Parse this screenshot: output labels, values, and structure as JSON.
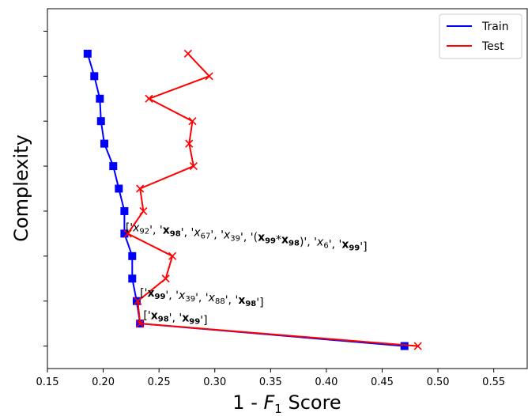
{
  "chart_data": {
    "type": "line",
    "title": "",
    "xlabel": "1 - F1 Score",
    "xlabel_parts": [
      "1 - ",
      "F",
      "1",
      " Score"
    ],
    "ylabel": "Complexity",
    "xlim": [
      0.15,
      0.58
    ],
    "ylim": [
      0,
      16
    ],
    "xticks": [
      0.15,
      0.2,
      0.25,
      0.3,
      0.35,
      0.4,
      0.45,
      0.5,
      0.55
    ],
    "xtick_labels": [
      "0.15",
      "0.20",
      "0.25",
      "0.30",
      "0.35",
      "0.40",
      "0.45",
      "0.50",
      "0.55"
    ],
    "yticks": [
      1,
      3,
      5,
      7,
      9,
      11,
      13,
      15
    ],
    "grid": false,
    "legend_position": "top-right",
    "series": [
      {
        "name": "Train",
        "color": "#0000ff",
        "marker": "square",
        "x": [
          0.47,
          0.233,
          0.23,
          0.226,
          0.226,
          0.219,
          0.219,
          0.214,
          0.209,
          0.201,
          0.198,
          0.197,
          0.192,
          0.186
        ],
        "y": [
          1,
          2,
          3,
          4,
          5,
          6,
          7,
          8,
          9,
          10,
          11,
          12,
          13,
          14
        ]
      },
      {
        "name": "Test",
        "color": "#ff0000",
        "marker": "x",
        "x": [
          0.482,
          0.233,
          0.231,
          0.256,
          0.262,
          0.222,
          0.236,
          0.233,
          0.281,
          0.277,
          0.28,
          0.241,
          0.295,
          0.276
        ],
        "y": [
          1,
          2,
          3,
          4,
          5,
          6,
          7,
          8,
          9,
          10,
          11,
          12,
          13,
          14
        ]
      }
    ],
    "annotations": [
      {
        "x": 0.236,
        "y": 2.2,
        "parts": [
          {
            "t": "['",
            "s": ""
          },
          {
            "t": "x",
            "s": "b"
          },
          {
            "t": "98",
            "s": "bsub"
          },
          {
            "t": "', '",
            "s": ""
          },
          {
            "t": "x",
            "s": "b"
          },
          {
            "t": "99",
            "s": "bsub"
          },
          {
            "t": "']",
            "s": ""
          }
        ]
      },
      {
        "x": 0.233,
        "y": 3.2,
        "parts": [
          {
            "t": "['",
            "s": ""
          },
          {
            "t": "x",
            "s": "b"
          },
          {
            "t": "99",
            "s": "bsub"
          },
          {
            "t": "', '",
            "s": ""
          },
          {
            "t": "x",
            "s": "i"
          },
          {
            "t": "39",
            "s": "sub"
          },
          {
            "t": "', '",
            "s": ""
          },
          {
            "t": "x",
            "s": "i"
          },
          {
            "t": "88",
            "s": "sub"
          },
          {
            "t": "', '",
            "s": ""
          },
          {
            "t": "x",
            "s": "b"
          },
          {
            "t": "98",
            "s": "bsub"
          },
          {
            "t": "']",
            "s": ""
          }
        ]
      },
      {
        "x": 0.22,
        "y": 6.1,
        "parts": [
          {
            "t": "['",
            "s": ""
          },
          {
            "t": "x",
            "s": "i"
          },
          {
            "t": "92",
            "s": "sub"
          },
          {
            "t": "', '",
            "s": ""
          },
          {
            "t": "x",
            "s": "b"
          },
          {
            "t": "98",
            "s": "bsub"
          },
          {
            "t": "', '",
            "s": ""
          },
          {
            "t": "x",
            "s": "i"
          },
          {
            "t": "67",
            "s": "sub"
          },
          {
            "t": "', '",
            "s": ""
          },
          {
            "t": "x",
            "s": "i"
          },
          {
            "t": "39",
            "s": "sub"
          },
          {
            "t": "', '(",
            "s": ""
          },
          {
            "t": "x",
            "s": "b"
          },
          {
            "t": "99",
            "s": "bsub"
          },
          {
            "t": "*",
            "s": ""
          },
          {
            "t": "x",
            "s": "b"
          },
          {
            "t": "98",
            "s": "bsub"
          },
          {
            "t": ")', '",
            "s": ""
          },
          {
            "t": "x",
            "s": "i"
          },
          {
            "t": "6",
            "s": "sub"
          },
          {
            "t": "', '",
            "s": ""
          },
          {
            "t": "x",
            "s": "b"
          },
          {
            "t": "99",
            "s": "bsub"
          },
          {
            "t": "']",
            "s": ""
          }
        ]
      }
    ]
  }
}
